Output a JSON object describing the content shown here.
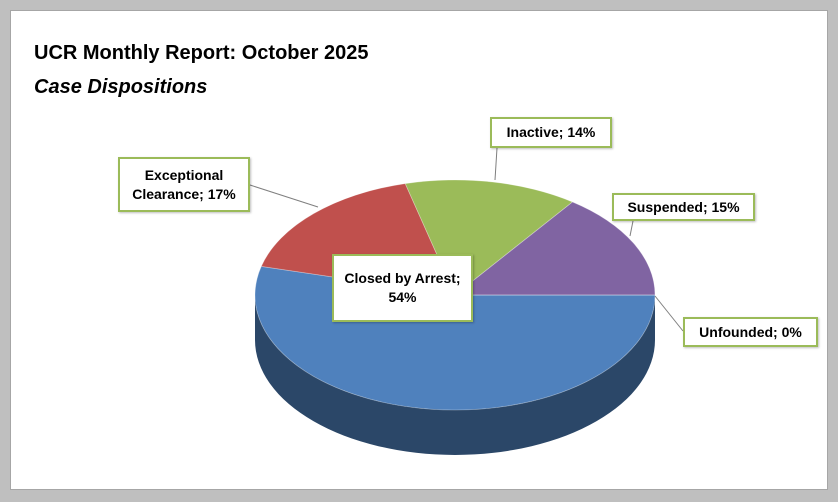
{
  "chart_data": {
    "type": "pie3d",
    "title": "UCR Monthly Report: October 2025",
    "subtitle": "Case Dispositions",
    "categories": [
      "Closed by Arrest",
      "Exceptional Clearance",
      "Inactive",
      "Suspended",
      "Unfounded"
    ],
    "values": [
      54,
      17,
      14,
      15,
      0
    ],
    "value_labels": [
      "54%",
      "17%",
      "14%",
      "15%",
      "0%"
    ],
    "label_separator": "; ",
    "colors": [
      "#4f81bd",
      "#c0504d",
      "#9bbb59",
      "#8064a2",
      "#f79646"
    ],
    "label_border_color": "#9bbb59"
  }
}
